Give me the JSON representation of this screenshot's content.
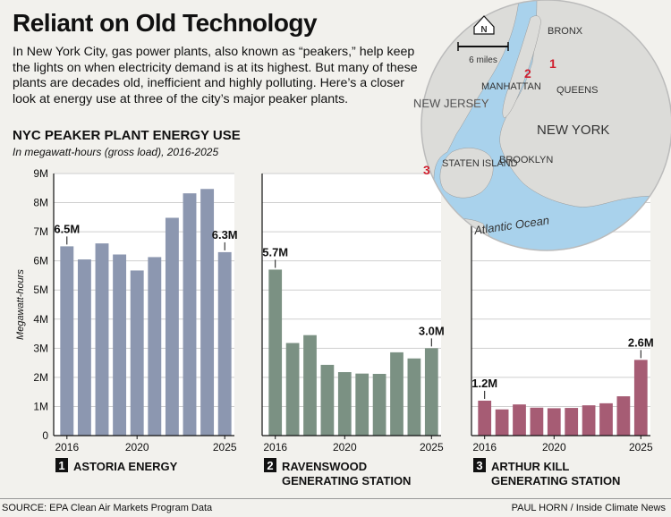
{
  "title": "Reliant on Old Technology",
  "intro": "In New York City, gas power plants, also known as “peakers,” help keep the lights on when electricity demand is at its highest. But many of these plants are decades old, inefficient and highly polluting. Here’s a closer look at energy use at three of the city’s major peaker plants.",
  "chart_heading": "NYC PEAKER PLANT ENERGY USE",
  "chart_subheading": "In megawatt-hours (gross load), 2016-2025",
  "source": "SOURCE: EPA Clean Air Markets Program Data",
  "credit": "PAUL HORN / Inside Climate News",
  "map": {
    "labels": [
      "BRONX",
      "MANHATTAN",
      "QUEENS",
      "NEW JERSEY",
      "NEW YORK",
      "BROOKLYN",
      "STATEN ISLAND",
      "Atlantic Ocean"
    ],
    "scale_label": "6 miles",
    "north_label": "N",
    "markers": [
      "1",
      "2",
      "3"
    ]
  },
  "chart_data": [
    {
      "type": "bar",
      "panel": "1",
      "title": "ASTORIA ENERGY",
      "ylabel": "Megawatt-hours",
      "ylim": [
        0,
        9000000
      ],
      "yticks": [
        "0",
        "1M",
        "2M",
        "3M",
        "4M",
        "5M",
        "6M",
        "7M",
        "8M",
        "9M"
      ],
      "x": [
        2016,
        2017,
        2018,
        2019,
        2020,
        2021,
        2022,
        2023,
        2024,
        2025
      ],
      "x_tick_labels": [
        "2016",
        "2020",
        "2025"
      ],
      "color": "#8c97b0",
      "values": [
        6500000,
        6050000,
        6600000,
        6220000,
        5670000,
        6130000,
        7480000,
        8320000,
        8470000,
        6300000
      ],
      "annotations": [
        {
          "year": 2016,
          "label": "6.5M"
        },
        {
          "year": 2025,
          "label": "6.3M"
        }
      ]
    },
    {
      "type": "bar",
      "panel": "2",
      "title": "RAVENSWOOD GENERATING STATION",
      "ylim": [
        0,
        9000000
      ],
      "x": [
        2016,
        2017,
        2018,
        2019,
        2020,
        2021,
        2022,
        2023,
        2024,
        2025
      ],
      "x_tick_labels": [
        "2016",
        "2020",
        "2025"
      ],
      "color": "#7b9183",
      "values": [
        5700000,
        3180000,
        3450000,
        2430000,
        2180000,
        2130000,
        2120000,
        2860000,
        2650000,
        3000000
      ],
      "annotations": [
        {
          "year": 2016,
          "label": "5.7M"
        },
        {
          "year": 2025,
          "label": "3.0M"
        }
      ]
    },
    {
      "type": "bar",
      "panel": "3",
      "title": "ARTHUR KILL GENERATING STATION",
      "ylim": [
        0,
        9000000
      ],
      "x": [
        2016,
        2017,
        2018,
        2019,
        2020,
        2021,
        2022,
        2023,
        2024,
        2025
      ],
      "x_tick_labels": [
        "2016",
        "2020",
        "2025"
      ],
      "color": "#a65c74",
      "values": [
        1200000,
        900000,
        1070000,
        960000,
        940000,
        950000,
        1040000,
        1110000,
        1350000,
        2600000
      ],
      "annotations": [
        {
          "year": 2016,
          "label": "1.2M"
        },
        {
          "year": 2025,
          "label": "2.6M"
        }
      ]
    }
  ]
}
